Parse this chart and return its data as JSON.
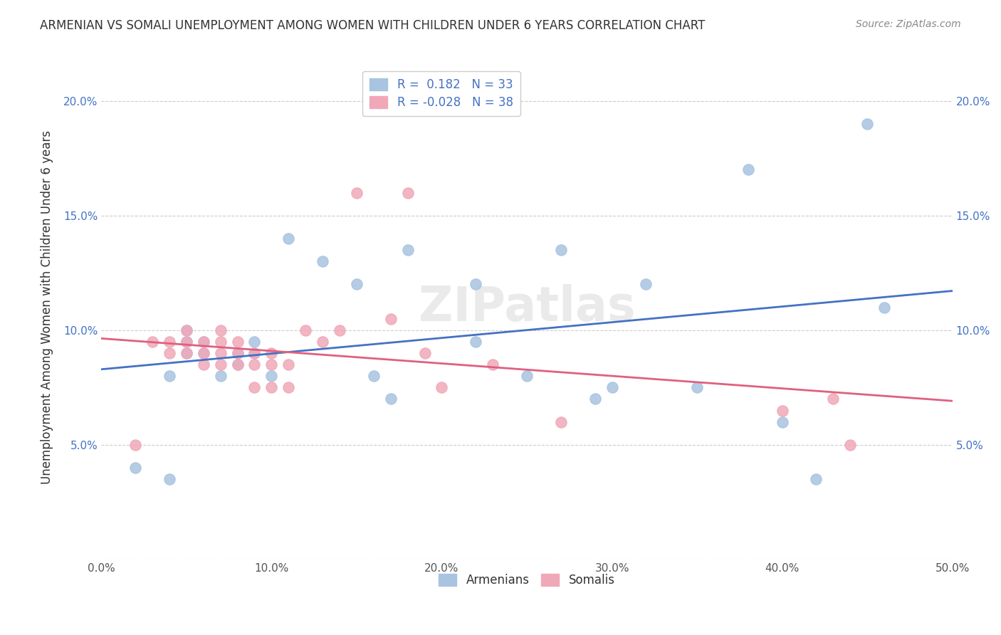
{
  "title": "ARMENIAN VS SOMALI UNEMPLOYMENT AMONG WOMEN WITH CHILDREN UNDER 6 YEARS CORRELATION CHART",
  "source": "Source: ZipAtlas.com",
  "ylabel": "Unemployment Among Women with Children Under 6 years",
  "xlabel": "",
  "xlim": [
    0.0,
    0.5
  ],
  "ylim": [
    0.0,
    0.22
  ],
  "xticks": [
    0.0,
    0.1,
    0.2,
    0.3,
    0.4,
    0.5
  ],
  "xticklabels": [
    "0.0%",
    "10.0%",
    "20.0%",
    "30.0%",
    "40.0%",
    "50.0%"
  ],
  "yticks": [
    0.0,
    0.05,
    0.1,
    0.15,
    0.2
  ],
  "yticklabels": [
    "",
    "5.0%",
    "10.0%",
    "15.0%",
    "20.0%"
  ],
  "armenian_R": 0.182,
  "armenian_N": 33,
  "somali_R": -0.028,
  "somali_N": 38,
  "armenian_color": "#a8c4e0",
  "somali_color": "#f0a8b8",
  "armenian_line_color": "#4472c4",
  "somali_line_color": "#e06080",
  "watermark": "ZIPatlas",
  "armenian_x": [
    0.02,
    0.04,
    0.04,
    0.05,
    0.05,
    0.05,
    0.06,
    0.06,
    0.07,
    0.08,
    0.08,
    0.09,
    0.09,
    0.1,
    0.11,
    0.13,
    0.15,
    0.16,
    0.17,
    0.18,
    0.22,
    0.22,
    0.25,
    0.27,
    0.29,
    0.3,
    0.32,
    0.35,
    0.38,
    0.4,
    0.42,
    0.45,
    0.46
  ],
  "armenian_y": [
    0.04,
    0.035,
    0.08,
    0.09,
    0.095,
    0.1,
    0.09,
    0.095,
    0.08,
    0.09,
    0.085,
    0.095,
    0.09,
    0.08,
    0.14,
    0.13,
    0.12,
    0.08,
    0.07,
    0.135,
    0.12,
    0.095,
    0.08,
    0.135,
    0.07,
    0.075,
    0.12,
    0.075,
    0.17,
    0.06,
    0.035,
    0.19,
    0.11
  ],
  "somali_x": [
    0.02,
    0.03,
    0.04,
    0.04,
    0.05,
    0.05,
    0.05,
    0.06,
    0.06,
    0.06,
    0.07,
    0.07,
    0.07,
    0.07,
    0.08,
    0.08,
    0.08,
    0.09,
    0.09,
    0.09,
    0.1,
    0.1,
    0.1,
    0.11,
    0.11,
    0.12,
    0.13,
    0.14,
    0.15,
    0.17,
    0.18,
    0.19,
    0.2,
    0.23,
    0.27,
    0.4,
    0.43,
    0.44
  ],
  "somali_y": [
    0.05,
    0.095,
    0.09,
    0.095,
    0.09,
    0.095,
    0.1,
    0.085,
    0.09,
    0.095,
    0.085,
    0.09,
    0.095,
    0.1,
    0.085,
    0.09,
    0.095,
    0.075,
    0.085,
    0.09,
    0.075,
    0.085,
    0.09,
    0.075,
    0.085,
    0.1,
    0.095,
    0.1,
    0.16,
    0.105,
    0.16,
    0.09,
    0.075,
    0.085,
    0.06,
    0.065,
    0.07,
    0.05
  ]
}
